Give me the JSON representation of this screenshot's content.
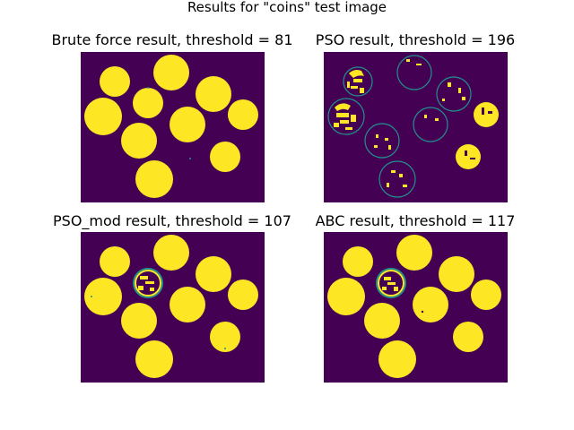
{
  "figure": {
    "title": "Results for \"coins\" test image",
    "colors": {
      "background": "#440154",
      "foreground": "#fde725",
      "edge": "#21918c"
    }
  },
  "panels": [
    {
      "title": "Brute force result, threshold = 81",
      "threshold": 81
    },
    {
      "title": "PSO result, threshold = 196",
      "threshold": 196
    },
    {
      "title": "PSO_mod result, threshold = 107",
      "threshold": 107
    },
    {
      "title": "ABC result, threshold = 117",
      "threshold": 117
    }
  ]
}
